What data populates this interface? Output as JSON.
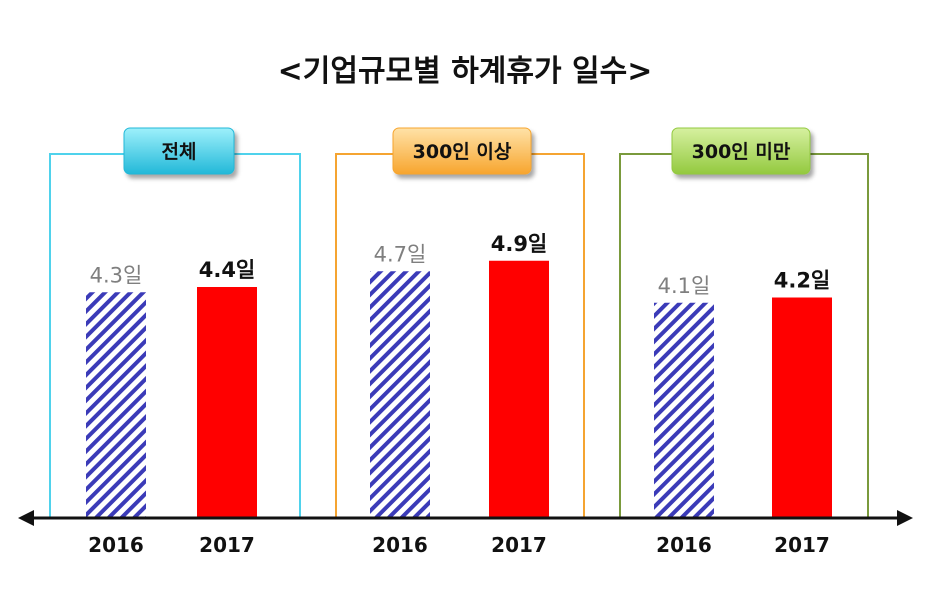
{
  "chart_data": {
    "type": "bar",
    "title": "<기업규모별 하계휴가 일수>",
    "ylim": [
      0,
      5.6
    ],
    "legend": "none",
    "grid": false,
    "colors": {
      "2016": "#3b3bb8",
      "2017": "#ff0000"
    },
    "groups": [
      {
        "name": "전체",
        "frame_color": "#4fd2ec",
        "badge_top": "#9ef0fb",
        "badge_bottom": "#22b8d8",
        "bars": [
          {
            "x": "2016",
            "value": 4.3,
            "label": "4.3일"
          },
          {
            "x": "2017",
            "value": 4.4,
            "label": "4.4일"
          }
        ]
      },
      {
        "name": "300인 이상",
        "frame_color": "#f5a431",
        "badge_top": "#ffe2a8",
        "badge_bottom": "#f7a52e",
        "bars": [
          {
            "x": "2016",
            "value": 4.7,
            "label": "4.7일"
          },
          {
            "x": "2017",
            "value": 4.9,
            "label": "4.9일"
          }
        ]
      },
      {
        "name": "300인 미만",
        "frame_color": "#7a9a3c",
        "badge_top": "#d6f0a0",
        "badge_bottom": "#93c93f",
        "bars": [
          {
            "x": "2016",
            "value": 4.1,
            "label": "4.1일"
          },
          {
            "x": "2017",
            "value": 4.2,
            "label": "4.2일"
          }
        ]
      }
    ]
  }
}
